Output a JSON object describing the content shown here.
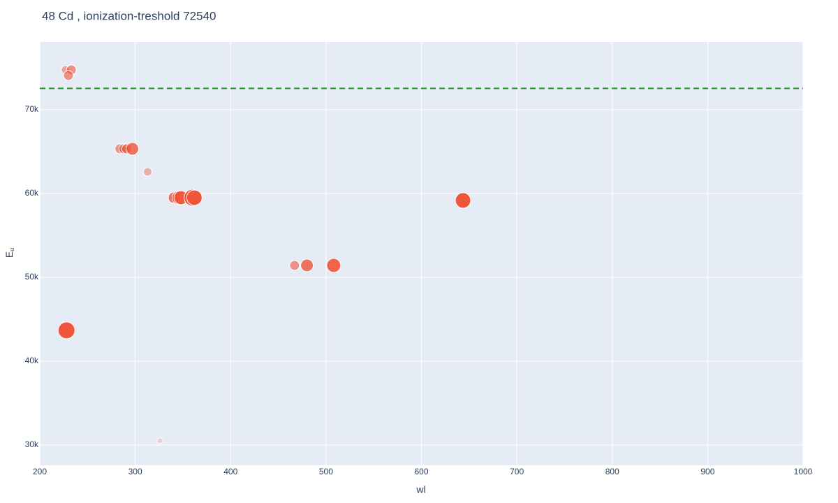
{
  "chart_data": {
    "type": "scatter",
    "title": "48 Cd , ionization-treshold 72540",
    "xlabel": "wl",
    "ylabel": "E",
    "ylabel_sub": "u",
    "xlim": [
      200,
      1000
    ],
    "ylim": [
      27580,
      78080
    ],
    "xticks": [
      200,
      300,
      400,
      500,
      600,
      700,
      800,
      900,
      1000
    ],
    "yticks": [
      {
        "value": 30000,
        "label": "30k"
      },
      {
        "value": 40000,
        "label": "40k"
      },
      {
        "value": 50000,
        "label": "50k"
      },
      {
        "value": 60000,
        "label": "60k"
      },
      {
        "value": 70000,
        "label": "70k"
      }
    ],
    "grid": true,
    "color": "#ef553b",
    "x": [
      227,
      233,
      230,
      284,
      288,
      291,
      297,
      313,
      326,
      340.5,
      346,
      348,
      360,
      362,
      467,
      480,
      508,
      643.6,
      228
    ],
    "values": [
      74750,
      74750,
      74080,
      65330,
      65330,
      65330,
      65330,
      62580,
      30500,
      59500,
      59500,
      59500,
      59500,
      59500,
      51420,
      51420,
      51420,
      59170,
      43670
    ],
    "sizes": [
      12,
      14,
      14,
      14,
      14,
      14,
      18,
      12,
      8,
      16,
      20,
      20,
      24,
      22,
      14,
      18,
      20,
      22,
      24
    ],
    "opacities": [
      0.5,
      0.6,
      0.6,
      0.6,
      0.6,
      0.7,
      0.8,
      0.4,
      0.2,
      0.8,
      0.9,
      0.9,
      1,
      1,
      0.6,
      0.8,
      0.9,
      1,
      1
    ],
    "threshold": 72540,
    "threshold_color": "#1a8a1a"
  }
}
